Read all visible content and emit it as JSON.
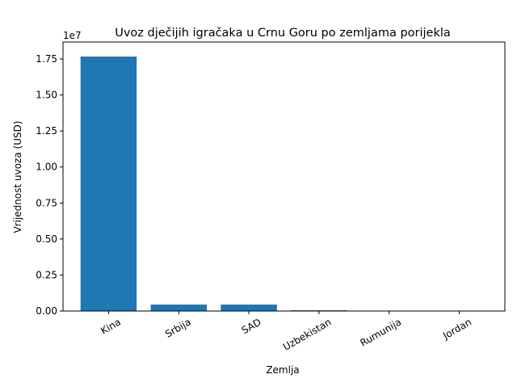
{
  "chart_data": {
    "type": "bar",
    "title": "Uvoz dječijih igračaka u Crnu Goru po zemljama porijekla",
    "x_label": "Zemlja",
    "y_label": "Vrijednost uvoza (USD)",
    "y_offset_label": "1e7",
    "categories": [
      "Kina",
      "Srbija",
      "SAD",
      "Uzbekistan",
      "Rumunija",
      "Jordan"
    ],
    "values": [
      17670000,
      450000,
      450000,
      50000,
      5000,
      3000
    ],
    "color": "#1f77b4",
    "ylim": [
      0,
      18680000
    ],
    "yticks": [
      {
        "value": 0,
        "label": "0.00"
      },
      {
        "value": 2500000,
        "label": "0.25"
      },
      {
        "value": 5000000,
        "label": "0.50"
      },
      {
        "value": 7500000,
        "label": "0.75"
      },
      {
        "value": 10000000,
        "label": "1.00"
      },
      {
        "value": 12500000,
        "label": "1.25"
      },
      {
        "value": 15000000,
        "label": "1.50"
      },
      {
        "value": 17500000,
        "label": "1.75"
      }
    ]
  }
}
